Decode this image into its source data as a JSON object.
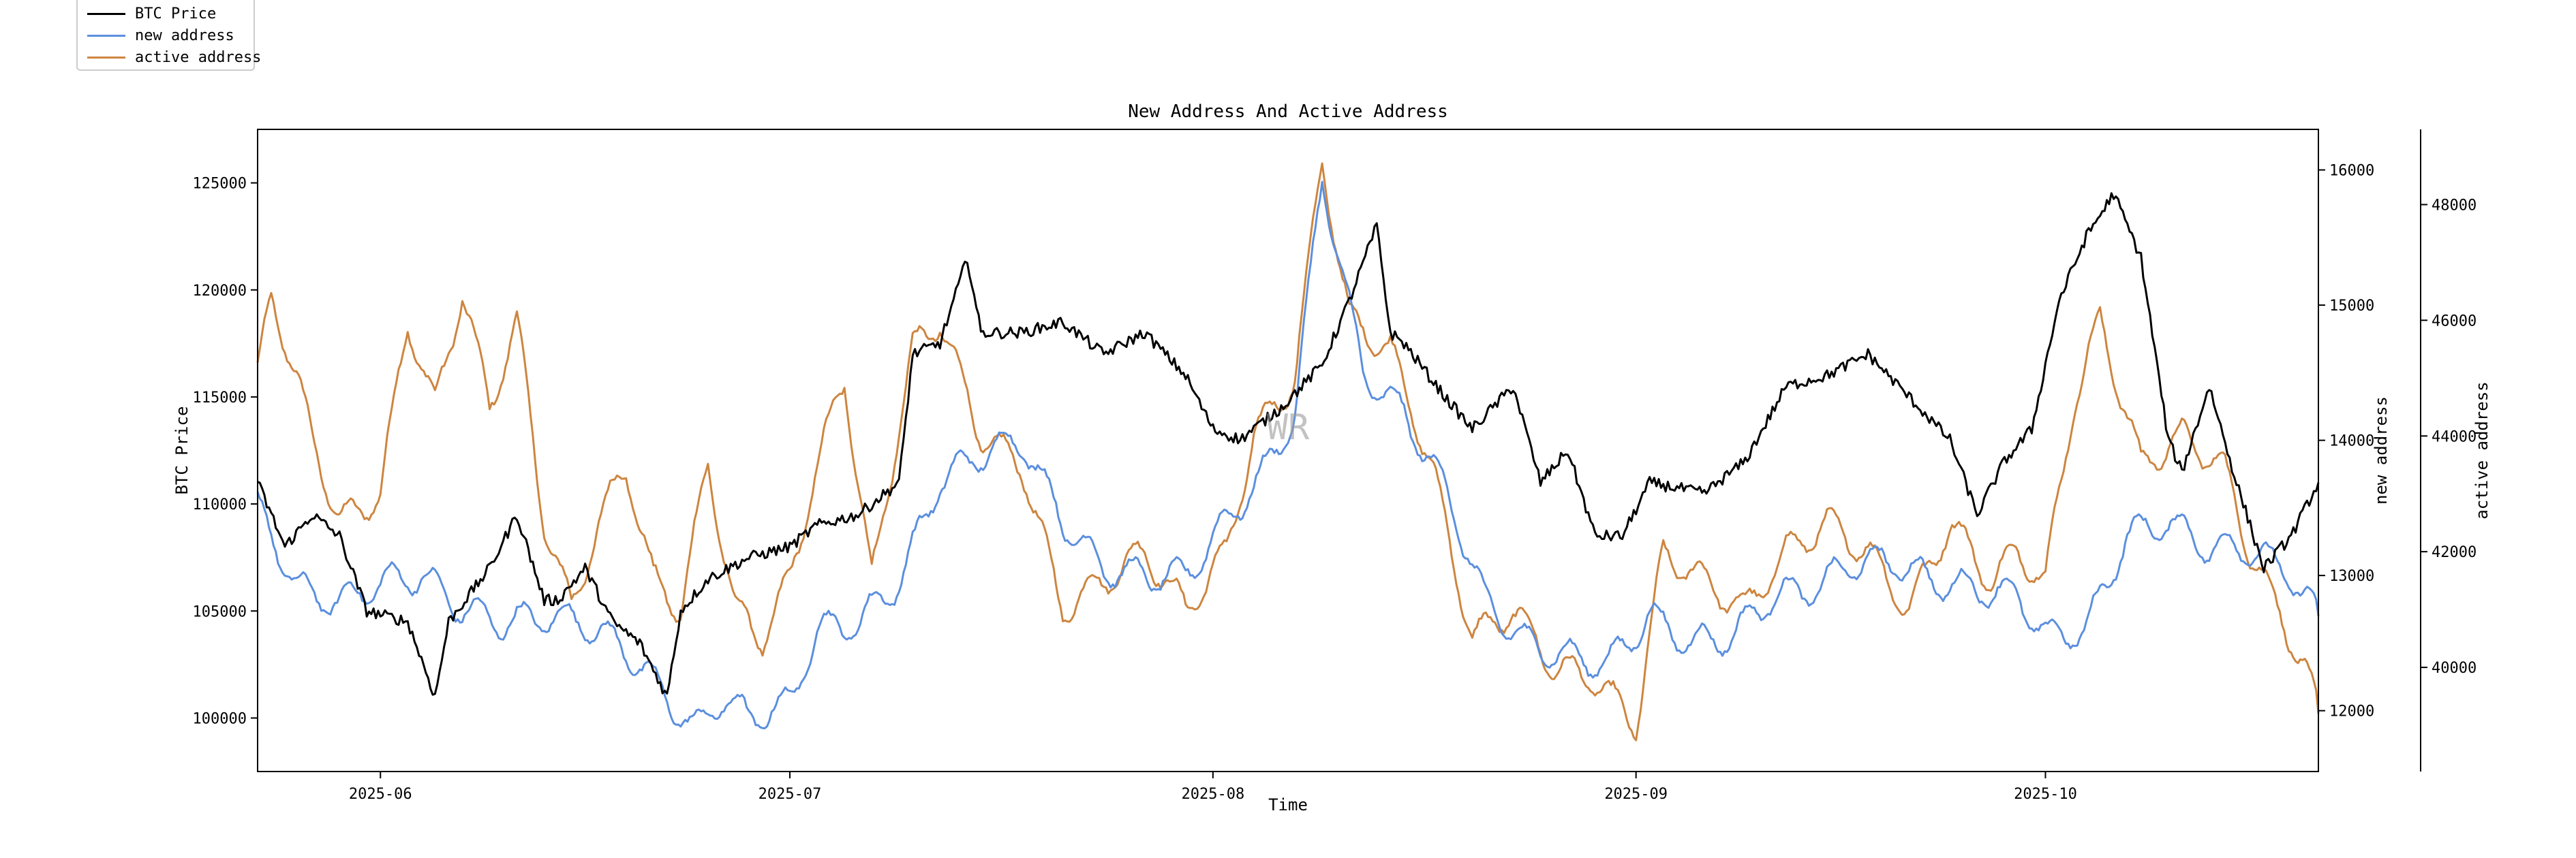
{
  "chart_data": {
    "type": "line",
    "title": "New Address And Active Address",
    "xlabel": "Time",
    "watermark": "WR",
    "x_range": [
      "2025-05-23",
      "2025-10-21"
    ],
    "x_ticks": [
      "2025-06",
      "2025-07",
      "2025-08",
      "2025-09",
      "2025-10"
    ],
    "axes": {
      "left": {
        "label": "BTC Price",
        "ylim": [
          97500,
          127500
        ],
        "ticks": [
          100000,
          105000,
          110000,
          115000,
          120000,
          125000
        ]
      },
      "right": {
        "label": "new address",
        "ylim": [
          11550,
          16300
        ],
        "ticks": [
          12000,
          13000,
          14000,
          15000,
          16000
        ]
      },
      "outer": {
        "label": "active address",
        "ylim": [
          38200,
          49300
        ],
        "ticks": [
          40000,
          42000,
          44000,
          46000,
          48000
        ]
      }
    },
    "series": [
      {
        "name": "BTC Price",
        "axis": "left",
        "color": "#000000",
        "x": [
          "2025-05-23",
          "2025-05-25",
          "2025-05-27",
          "2025-05-29",
          "2025-05-31",
          "2025-06-03",
          "2025-06-05",
          "2025-06-06",
          "2025-06-09",
          "2025-06-11",
          "2025-06-13",
          "2025-06-14",
          "2025-06-16",
          "2025-06-18",
          "2025-06-20",
          "2025-06-22",
          "2025-06-23",
          "2025-06-25",
          "2025-06-28",
          "2025-07-01",
          "2025-07-03",
          "2025-07-06",
          "2025-07-09",
          "2025-07-10",
          "2025-07-12",
          "2025-07-14",
          "2025-07-15",
          "2025-07-18",
          "2025-07-21",
          "2025-07-24",
          "2025-07-27",
          "2025-07-30",
          "2025-08-01",
          "2025-08-03",
          "2025-08-06",
          "2025-08-09",
          "2025-08-11",
          "2025-08-13",
          "2025-08-14",
          "2025-08-15",
          "2025-08-18",
          "2025-08-20",
          "2025-08-23",
          "2025-08-25",
          "2025-08-27",
          "2025-08-29",
          "2025-08-31",
          "2025-09-02",
          "2025-09-06",
          "2025-09-09",
          "2025-09-12",
          "2025-09-15",
          "2025-09-18",
          "2025-09-21",
          "2025-09-24",
          "2025-09-26",
          "2025-09-28",
          "2025-09-30",
          "2025-10-02",
          "2025-10-04",
          "2025-10-06",
          "2025-10-08",
          "2025-10-10",
          "2025-10-11",
          "2025-10-13",
          "2025-10-15",
          "2025-10-17",
          "2025-10-19",
          "2025-10-21"
        ],
        "values": [
          111000,
          108000,
          109500,
          108500,
          105000,
          104500,
          101000,
          104500,
          107000,
          109500,
          105500,
          105500,
          107000,
          104500,
          103500,
          101000,
          105000,
          106500,
          107500,
          108000,
          109000,
          109500,
          111000,
          117000,
          117500,
          121500,
          118000,
          118000,
          118500,
          117000,
          118000,
          116000,
          113500,
          113000,
          114500,
          116500,
          119500,
          123000,
          118000,
          117500,
          115000,
          113500,
          115500,
          111000,
          112500,
          108500,
          108500,
          111000,
          110500,
          112000,
          115500,
          116000,
          117000,
          115000,
          113000,
          109500,
          112000,
          113500,
          119500,
          122500,
          124500,
          121500,
          113000,
          111500,
          115500,
          111000,
          107000,
          108500,
          111000
        ]
      },
      {
        "name": "new address",
        "axis": "right",
        "color": "#5b8fde",
        "x": [
          "2025-05-23",
          "2025-05-26",
          "2025-05-29",
          "2025-06-01",
          "2025-06-04",
          "2025-06-07",
          "2025-06-10",
          "2025-06-13",
          "2025-06-16",
          "2025-06-19",
          "2025-06-22",
          "2025-06-24",
          "2025-06-26",
          "2025-06-28",
          "2025-07-01",
          "2025-07-03",
          "2025-07-06",
          "2025-07-09",
          "2025-07-12",
          "2025-07-15",
          "2025-07-18",
          "2025-07-21",
          "2025-07-24",
          "2025-07-27",
          "2025-07-30",
          "2025-08-02",
          "2025-08-05",
          "2025-08-07",
          "2025-08-09",
          "2025-08-12",
          "2025-08-15",
          "2025-08-18",
          "2025-08-21",
          "2025-08-24",
          "2025-08-27",
          "2025-08-30",
          "2025-09-02",
          "2025-09-05",
          "2025-09-08",
          "2025-09-11",
          "2025-09-14",
          "2025-09-17",
          "2025-09-20",
          "2025-09-23",
          "2025-09-26",
          "2025-09-29",
          "2025-10-01",
          "2025-10-04",
          "2025-10-07",
          "2025-10-10",
          "2025-10-13",
          "2025-10-16",
          "2025-10-19",
          "2025-10-21"
        ],
        "values": [
          13500,
          12900,
          12800,
          12950,
          13000,
          12750,
          12650,
          12700,
          12650,
          12450,
          12100,
          11850,
          12100,
          11950,
          12050,
          12600,
          12650,
          12950,
          13700,
          13900,
          14000,
          13400,
          13050,
          13000,
          13000,
          13400,
          13800,
          14200,
          15950,
          14500,
          14200,
          13650,
          12800,
          12500,
          12400,
          12350,
          12700,
          12500,
          12550,
          12850,
          12900,
          13100,
          13100,
          12950,
          12900,
          12850,
          12550,
          12600,
          13300,
          13400,
          13200,
          13200,
          13000,
          12700
        ]
      },
      {
        "name": "active address",
        "axis": "outer",
        "color": "#cd853f",
        "x": [
          "2025-05-23",
          "2025-05-24",
          "2025-05-27",
          "2025-05-29",
          "2025-06-01",
          "2025-06-03",
          "2025-06-05",
          "2025-06-07",
          "2025-06-09",
          "2025-06-11",
          "2025-06-13",
          "2025-06-15",
          "2025-06-17",
          "2025-06-19",
          "2025-06-21",
          "2025-06-23",
          "2025-06-25",
          "2025-06-27",
          "2025-06-29",
          "2025-07-01",
          "2025-07-03",
          "2025-07-05",
          "2025-07-07",
          "2025-07-10",
          "2025-07-12",
          "2025-07-15",
          "2025-07-18",
          "2025-07-21",
          "2025-07-24",
          "2025-07-27",
          "2025-07-30",
          "2025-08-02",
          "2025-08-04",
          "2025-08-07",
          "2025-08-09",
          "2025-08-11",
          "2025-08-14",
          "2025-08-17",
          "2025-08-20",
          "2025-08-23",
          "2025-08-26",
          "2025-08-29",
          "2025-09-01",
          "2025-09-03",
          "2025-09-06",
          "2025-09-09",
          "2025-09-12",
          "2025-09-15",
          "2025-09-18",
          "2025-09-21",
          "2025-09-24",
          "2025-09-27",
          "2025-09-29",
          "2025-10-01",
          "2025-10-03",
          "2025-10-05",
          "2025-10-08",
          "2025-10-11",
          "2025-10-14",
          "2025-10-16",
          "2025-10-18",
          "2025-10-20",
          "2025-10-21"
        ],
        "values": [
          45000,
          46500,
          44000,
          42500,
          43000,
          46000,
          44500,
          46500,
          44500,
          46000,
          42500,
          41000,
          42500,
          43500,
          41500,
          41000,
          43500,
          41000,
          40500,
          41500,
          43500,
          45000,
          41500,
          45500,
          46000,
          44000,
          43500,
          41000,
          41500,
          42000,
          41000,
          42000,
          44000,
          45000,
          48800,
          46000,
          45500,
          43500,
          40500,
          41000,
          40000,
          39800,
          39000,
          42000,
          41500,
          41000,
          42000,
          42500,
          42000,
          41000,
          42500,
          41500,
          42000,
          41500,
          44500,
          46000,
          43500,
          44000,
          43500,
          42000,
          41000,
          40000,
          39200
        ]
      }
    ]
  }
}
